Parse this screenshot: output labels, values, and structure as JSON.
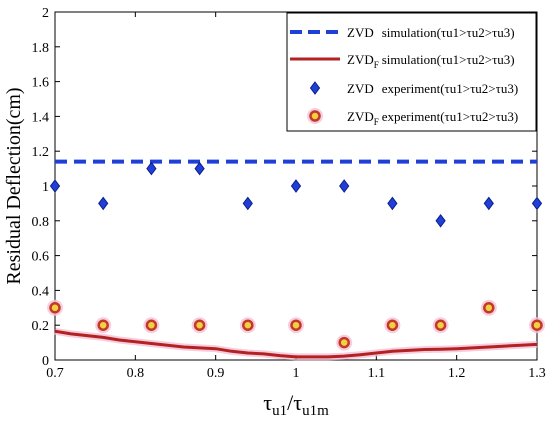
{
  "chart_data": {
    "type": "scatter",
    "title": "",
    "xlabel": "τu1/τu1m",
    "ylabel": "Residual Deflection(cm)",
    "xlim": [
      0.7,
      1.3
    ],
    "ylim": [
      0,
      2
    ],
    "xticks": [
      "0.7",
      "0.8",
      "0.9",
      "1",
      "1.1",
      "1.2",
      "1.3"
    ],
    "yticks": [
      "0",
      "0.2",
      "0.4",
      "0.6",
      "0.8",
      "1",
      "1.2",
      "1.4",
      "1.6",
      "1.8",
      "2"
    ],
    "grid": false,
    "legend_position": "top-right",
    "colors": {
      "zvd_sim": "#1f3fd6",
      "zvdf_sim": "#b22222",
      "zvd_exp": "#1f3fd6",
      "zvdf_exp": "#c0392b"
    },
    "series": [
      {
        "name": "ZVD simulation(τu1>τu2>τu3)",
        "kind": "line",
        "x": [
          0.7,
          1.3
        ],
        "y": [
          1.14,
          1.14
        ]
      },
      {
        "name": "ZVDF simulation(τu1>τu2>τu3)",
        "kind": "line",
        "x": [
          0.7,
          0.72,
          0.74,
          0.76,
          0.78,
          0.8,
          0.82,
          0.84,
          0.86,
          0.88,
          0.9,
          0.92,
          0.94,
          0.96,
          0.98,
          1.0,
          1.02,
          1.04,
          1.06,
          1.08,
          1.1,
          1.12,
          1.14,
          1.16,
          1.18,
          1.2,
          1.22,
          1.24,
          1.26,
          1.28,
          1.3
        ],
        "y": [
          0.165,
          0.15,
          0.14,
          0.13,
          0.115,
          0.105,
          0.095,
          0.085,
          0.075,
          0.07,
          0.065,
          0.05,
          0.04,
          0.035,
          0.025,
          0.018,
          0.018,
          0.018,
          0.022,
          0.03,
          0.04,
          0.05,
          0.055,
          0.06,
          0.062,
          0.065,
          0.07,
          0.075,
          0.08,
          0.085,
          0.09
        ]
      },
      {
        "name": "ZVD experiment(τu1>τu2>τu3)",
        "kind": "scatter",
        "marker": "diamond",
        "x": [
          0.7,
          0.76,
          0.82,
          0.88,
          0.94,
          1.0,
          1.06,
          1.12,
          1.18,
          1.24,
          1.3
        ],
        "y": [
          1.0,
          0.9,
          1.1,
          1.1,
          0.9,
          1.0,
          1.0,
          0.9,
          0.8,
          0.9,
          0.9
        ]
      },
      {
        "name": "ZVDF experiment(τu1>τu2>τu3)",
        "kind": "scatter",
        "marker": "circle",
        "x": [
          0.7,
          0.76,
          0.82,
          0.88,
          0.94,
          1.0,
          1.06,
          1.12,
          1.18,
          1.24,
          1.3
        ],
        "y": [
          0.3,
          0.2,
          0.2,
          0.2,
          0.2,
          0.2,
          0.1,
          0.2,
          0.2,
          0.3,
          0.2
        ]
      }
    ],
    "legend": [
      {
        "label": "ZVD",
        "sub": "",
        "rest": "simulation(τu1>τu2>τu3)"
      },
      {
        "label": "ZVD",
        "sub": "F",
        "rest": "simulation(τu1>τu2>τu3)"
      },
      {
        "label": "ZVD",
        "sub": "",
        "rest": "experiment(τu1>τu2>τu3)"
      },
      {
        "label": "ZVD",
        "sub": "F",
        "rest": "experiment(τu1>τu2>τu3)"
      }
    ]
  }
}
